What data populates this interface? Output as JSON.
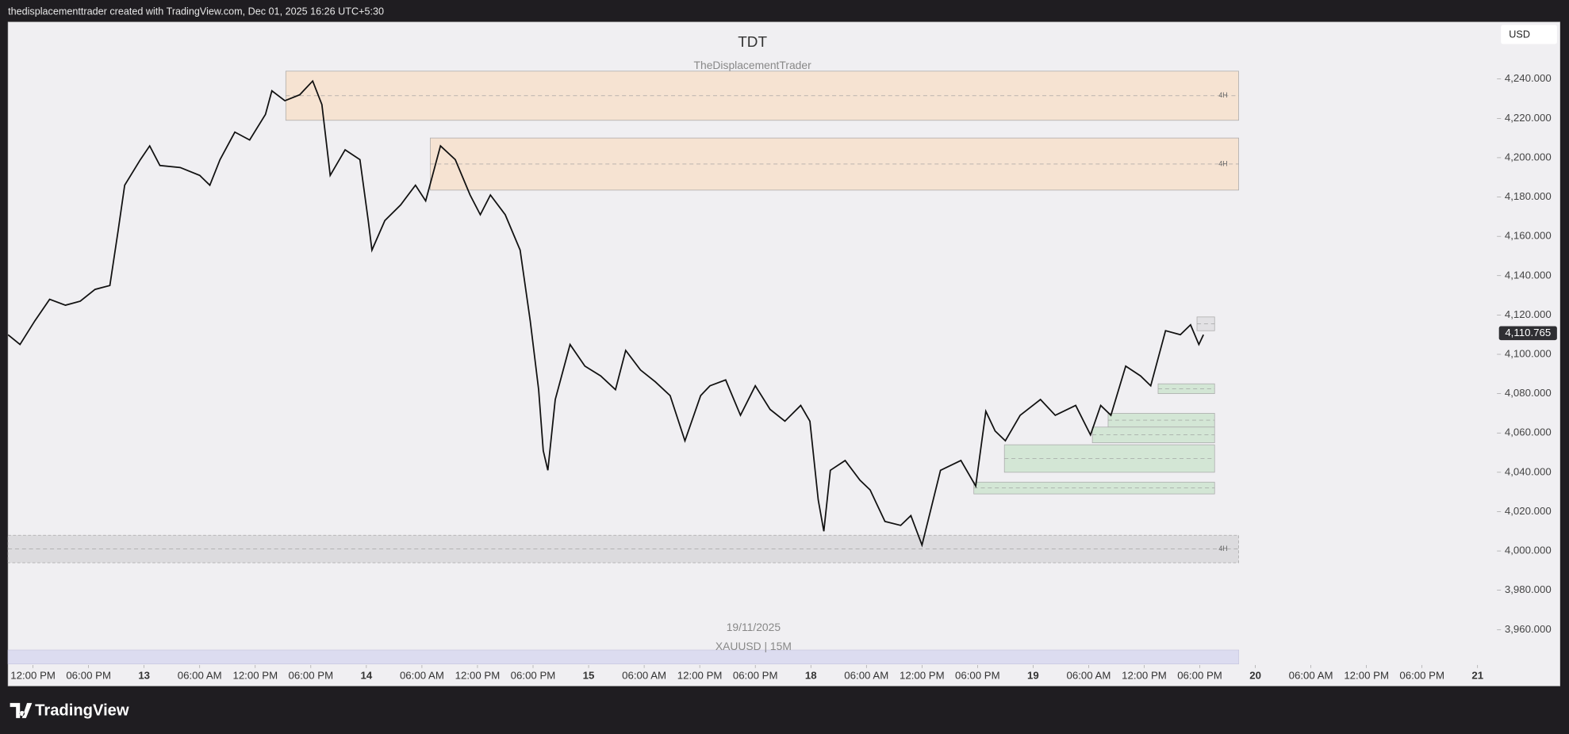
{
  "header": {
    "text": "thedisplacementtrader created with TradingView.com, Dec 01, 2025 16:26 UTC+5:30"
  },
  "footer": {
    "brand": "TradingView"
  },
  "chart_data": {
    "type": "line",
    "title": "TDT",
    "subtitle": "TheDisplacementTrader",
    "watermark": [
      "19/11/2025",
      "XAUUSD | 15M"
    ],
    "currency": "USD",
    "color": "#111111",
    "x": [
      9.3,
      10.6,
      12.2,
      13.8,
      15.5,
      17.1,
      18.7,
      20.3,
      21.2,
      21.9,
      23.6,
      24.6,
      25.7,
      27.9,
      30.0,
      31.1,
      32.2,
      33.8,
      35.4,
      37.1,
      37.8,
      39.2,
      40.8,
      42.2,
      43.2,
      44.1,
      45.7,
      47.3,
      48.2,
      48.6,
      50.0,
      51.7,
      53.3,
      54.4,
      56.0,
      57.6,
      59.2,
      60.3,
      61.4,
      63.0,
      64.6,
      65.7,
      66.6,
      67.1,
      67.6,
      68.4,
      70.0,
      71.6,
      73.3,
      74.9,
      76.0,
      77.6,
      79.2,
      80.8,
      82.4,
      84.1,
      85.1,
      86.8,
      88.4,
      90.0,
      91.6,
      93.2,
      94.9,
      95.9,
      96.8,
      97.4,
      98.1,
      99.7,
      101.3,
      102.4,
      104.0,
      105.7,
      106.8,
      108.0,
      108.9,
      110.0,
      112.2,
      113.8,
      114.9,
      115.9,
      117.0,
      118.6,
      120.8,
      122.4,
      124.6,
      126.2,
      127.3,
      128.4,
      130.0,
      131.6,
      132.7,
      134.3,
      135.9,
      137.0,
      137.9,
      138.4
    ],
    "values": [
      4110,
      4105,
      4117,
      4128,
      4125,
      4127,
      4133,
      4135,
      4163,
      4186,
      4199,
      4206,
      4196,
      4195,
      4191,
      4186,
      4199,
      4213,
      4209,
      4222,
      4234,
      4229,
      4232,
      4239,
      4227,
      4191,
      4204,
      4199,
      4168,
      4153,
      4168,
      4176,
      4186,
      4178,
      4206,
      4199,
      4181,
      4171,
      4181,
      4171,
      4153,
      4117,
      4082,
      4051,
      4041,
      4077,
      4105,
      4094,
      4089,
      4082,
      4102,
      4092,
      4086,
      4079,
      4056,
      4079,
      4084,
      4087,
      4069,
      4084,
      4072,
      4066,
      4074,
      4066,
      4026,
      4010,
      4041,
      4046,
      4036,
      4031,
      4015,
      4013,
      4018,
      4003,
      4020,
      4041,
      4046,
      4033,
      4071,
      4061,
      4056,
      4069,
      4077,
      4069,
      4074,
      4059,
      4074,
      4069,
      4094,
      4089,
      4084,
      4112,
      4110,
      4115,
      4105,
      4110
    ],
    "zones": [
      {
        "x0": 39.3,
        "x1": 142.2,
        "y0": 4219,
        "y1": 4244,
        "label": "4H",
        "color": "#f6e3d2"
      },
      {
        "x0": 54.9,
        "x1": 142.2,
        "y0": 4183.5,
        "y1": 4210,
        "label": "4H",
        "color": "#f6e3d2"
      },
      {
        "x0": 9.3,
        "x1": 142.2,
        "y0": 3994,
        "y1": 4008,
        "label": "4H",
        "color": "#dcdbde"
      },
      {
        "x0": 133.5,
        "x1": 139.6,
        "y0": 4080,
        "y1": 4085,
        "color": "#d3e6d5"
      },
      {
        "x0": 128.1,
        "x1": 139.6,
        "y0": 4063,
        "y1": 4070,
        "color": "#d3e6d5"
      },
      {
        "x0": 126.4,
        "x1": 139.6,
        "y0": 4055,
        "y1": 4063,
        "color": "#d3e6d5"
      },
      {
        "x0": 116.9,
        "x1": 139.6,
        "y0": 4040,
        "y1": 4054,
        "color": "#d3e6d5"
      },
      {
        "x0": 113.6,
        "x1": 139.6,
        "y0": 4029,
        "y1": 4035,
        "color": "#d3e6d5"
      },
      {
        "x0": 137.7,
        "x1": 139.6,
        "y0": 4112,
        "y1": 4119,
        "color": "#e2e1e4"
      }
    ],
    "last_price": {
      "value": 4110.765,
      "label": "4,110.765"
    },
    "xlim": [
      9.3,
      176.9
    ],
    "ylim": [
      3942,
      4269
    ],
    "xticks": [
      {
        "value": 12,
        "label": "12:00 PM"
      },
      {
        "value": 18,
        "label": "06:00 PM"
      },
      {
        "value": 24,
        "label": "13"
      },
      {
        "value": 30,
        "label": "06:00 AM"
      },
      {
        "value": 36,
        "label": "12:00 PM"
      },
      {
        "value": 42,
        "label": "06:00 PM"
      },
      {
        "value": 48,
        "label": "14"
      },
      {
        "value": 54,
        "label": "06:00 AM"
      },
      {
        "value": 60,
        "label": "12:00 PM"
      },
      {
        "value": 66,
        "label": "06:00 PM"
      },
      {
        "value": 72,
        "label": "15"
      },
      {
        "value": 78,
        "label": "06:00 AM"
      },
      {
        "value": 84,
        "label": "12:00 PM"
      },
      {
        "value": 90,
        "label": "06:00 PM"
      },
      {
        "value": 96,
        "label": "18"
      },
      {
        "value": 102,
        "label": "06:00 AM"
      },
      {
        "value": 108,
        "label": "12:00 PM"
      },
      {
        "value": 114,
        "label": "06:00 PM"
      },
      {
        "value": 120,
        "label": "19"
      },
      {
        "value": 126,
        "label": "06:00 AM"
      },
      {
        "value": 132,
        "label": "12:00 PM"
      },
      {
        "value": 138,
        "label": "06:00 PM"
      },
      {
        "value": 144,
        "label": "20"
      },
      {
        "value": 150,
        "label": "06:00 AM"
      },
      {
        "value": 156,
        "label": "12:00 PM"
      },
      {
        "value": 162,
        "label": "06:00 PM"
      },
      {
        "value": 168,
        "label": "21"
      }
    ],
    "yticks": [
      {
        "value": 3960,
        "label": "3,960.000"
      },
      {
        "value": 3980,
        "label": "3,980.000"
      },
      {
        "value": 4000,
        "label": "4,000.000"
      },
      {
        "value": 4020,
        "label": "4,020.000"
      },
      {
        "value": 4040,
        "label": "4,040.000"
      },
      {
        "value": 4060,
        "label": "4,060.000"
      },
      {
        "value": 4080,
        "label": "4,080.000"
      },
      {
        "value": 4100,
        "label": "4,100.000"
      },
      {
        "value": 4120,
        "label": "4,120.000"
      },
      {
        "value": 4140,
        "label": "4,140.000"
      },
      {
        "value": 4160,
        "label": "4,160.000"
      },
      {
        "value": 4180,
        "label": "4,180.000"
      },
      {
        "value": 4200,
        "label": "4,200.000"
      },
      {
        "value": 4220,
        "label": "4,220.000"
      },
      {
        "value": 4240,
        "label": "4,240.000"
      }
    ]
  }
}
